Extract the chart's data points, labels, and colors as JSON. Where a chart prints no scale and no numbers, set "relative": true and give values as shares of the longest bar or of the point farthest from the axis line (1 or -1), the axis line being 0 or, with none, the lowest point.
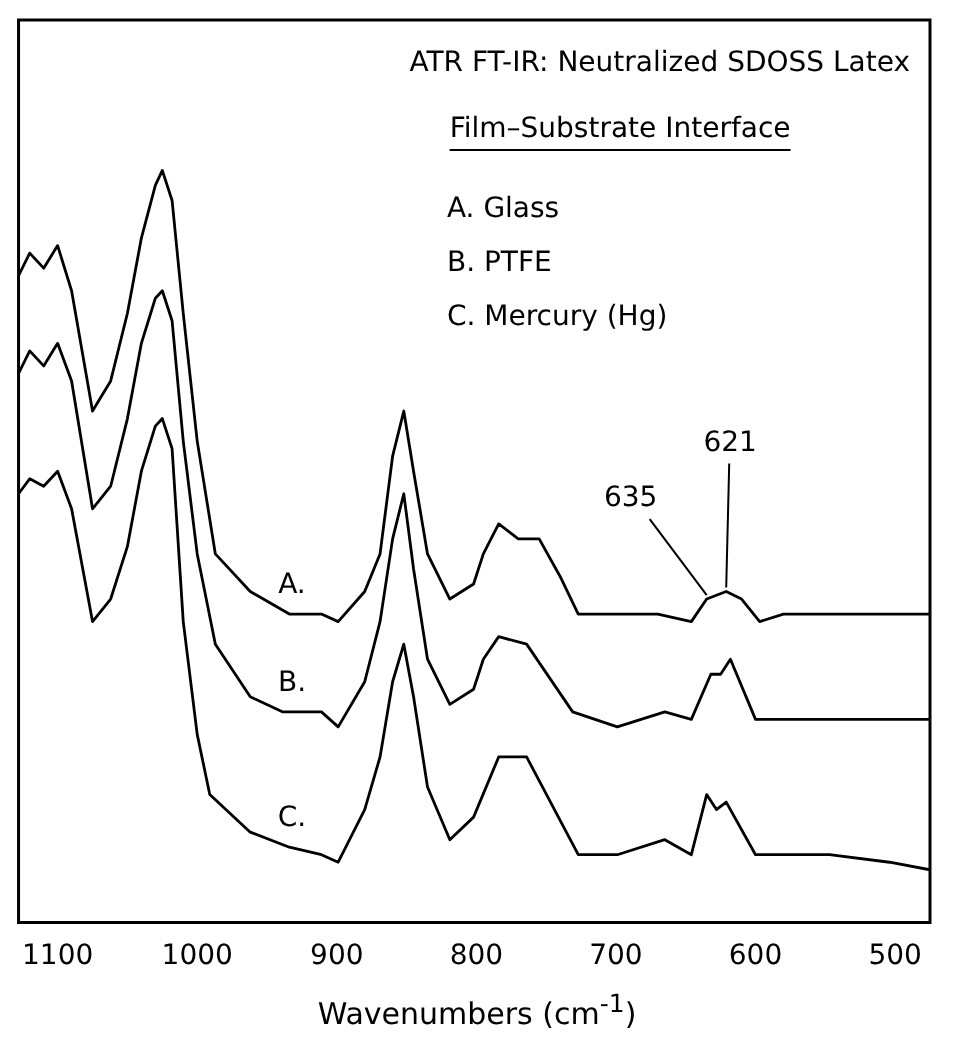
{
  "chart_data": {
    "type": "line",
    "title": "ATR FT-IR: Neutralized SDOSS Latex",
    "subtitle": "Film–Substrate Interface",
    "xlabel": "Wavenumbers (cm$^{-1}$)",
    "relative": true,
    "xlim": [
      1128,
      475
    ],
    "xticks": [
      1100,
      1000,
      900,
      800,
      700,
      600,
      500
    ],
    "grid": false,
    "legend": false,
    "line_style": "solid",
    "annotations": [
      "A. Glass",
      "B. PTFE",
      "C. Mercury (Hg)",
      {
        "text": "635",
        "x": 635,
        "y": 0.43
      },
      {
        "text": "621",
        "x": 621,
        "y": 0.44
      }
    ],
    "series": [
      {
        "name": "A.",
        "color": "#000000",
        "x": [
          1128,
          1120,
          1110,
          1100,
          1090,
          1075,
          1062,
          1050,
          1040,
          1030,
          1025,
          1018,
          1010,
          1000,
          987,
          962,
          934,
          911,
          899,
          880,
          869,
          860,
          852,
          845,
          835,
          819,
          802,
          795,
          784,
          770,
          755,
          740,
          727,
          699,
          670,
          646,
          635,
          621,
          610,
          597,
          580,
          550,
          500,
          475
        ],
        "values": [
          0.86,
          0.89,
          0.87,
          0.9,
          0.84,
          0.68,
          0.72,
          0.81,
          0.91,
          0.98,
          1,
          0.96,
          0.81,
          0.64,
          0.49,
          0.44,
          0.41,
          0.41,
          0.4,
          0.44,
          0.49,
          0.62,
          0.68,
          0.6,
          0.49,
          0.43,
          0.45,
          0.49,
          0.53,
          0.51,
          0.51,
          0.46,
          0.41,
          0.41,
          0.41,
          0.4,
          0.43,
          0.44,
          0.43,
          0.4,
          0.41,
          0.41,
          0.41,
          0.41
        ]
      },
      {
        "name": "B.",
        "color": "#000000",
        "x": [
          1128,
          1120,
          1110,
          1100,
          1090,
          1075,
          1062,
          1050,
          1040,
          1030,
          1025,
          1018,
          1010,
          1000,
          987,
          962,
          939,
          911,
          899,
          880,
          869,
          860,
          852,
          845,
          835,
          819,
          802,
          795,
          784,
          764,
          731,
          699,
          665,
          646,
          632,
          625,
          618,
          600,
          550,
          500,
          475
        ],
        "values": [
          0.73,
          0.76,
          0.74,
          0.77,
          0.72,
          0.55,
          0.58,
          0.67,
          0.77,
          0.83,
          0.84,
          0.8,
          0.64,
          0.49,
          0.37,
          0.3,
          0.28,
          0.28,
          0.26,
          0.32,
          0.4,
          0.51,
          0.57,
          0.47,
          0.35,
          0.29,
          0.31,
          0.35,
          0.38,
          0.37,
          0.28,
          0.26,
          0.28,
          0.27,
          0.33,
          0.33,
          0.35,
          0.27,
          0.27,
          0.27,
          0.27
        ]
      },
      {
        "name": "C.",
        "color": "#000000",
        "x": [
          1128,
          1120,
          1110,
          1100,
          1090,
          1075,
          1062,
          1050,
          1040,
          1030,
          1025,
          1018,
          1010,
          1000,
          991,
          962,
          934,
          911,
          899,
          880,
          869,
          860,
          852,
          845,
          835,
          819,
          802,
          784,
          764,
          727,
          699,
          665,
          646,
          635,
          628,
          621,
          600,
          547,
          504,
          475
        ],
        "values": [
          0.57,
          0.59,
          0.58,
          0.6,
          0.55,
          0.4,
          0.43,
          0.5,
          0.6,
          0.66,
          0.67,
          0.63,
          0.4,
          0.25,
          0.17,
          0.12,
          0.1,
          0.09,
          0.08,
          0.15,
          0.22,
          0.32,
          0.37,
          0.3,
          0.18,
          0.11,
          0.14,
          0.22,
          0.22,
          0.09,
          0.09,
          0.11,
          0.09,
          0.17,
          0.15,
          0.16,
          0.09,
          0.09,
          0.08,
          0.07
        ]
      }
    ]
  }
}
